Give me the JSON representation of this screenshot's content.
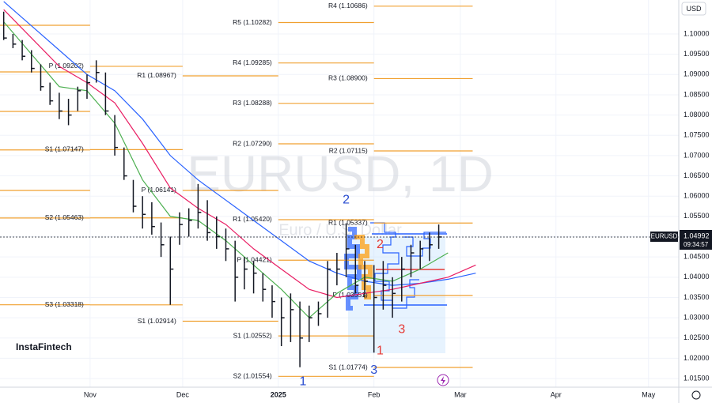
{
  "chart_data": {
    "type": "ohlc",
    "watermark": "EURUSD, 1D",
    "watermark_subtitle": "Euro / U.S. Dollar",
    "brand": "InstaFintech",
    "currency": "USD",
    "symbol": "EURUSD",
    "last_price": 1.04992,
    "countdown": "09:34:57",
    "color": "#131722",
    "x": [
      3,
      6,
      9,
      12,
      15,
      18,
      21,
      24,
      27,
      30,
      33,
      36,
      39,
      42,
      45,
      48,
      51,
      54,
      57,
      60,
      63,
      66,
      69,
      72,
      75,
      78,
      81,
      84,
      87,
      90,
      93,
      96,
      99,
      102,
      105,
      108,
      111,
      114,
      117,
      120,
      123,
      126,
      129,
      132,
      135,
      138,
      141,
      144
    ],
    "high": [
      1.1055,
      1.1,
      1.0985,
      1.096,
      1.0925,
      1.088,
      1.0855,
      1.084,
      1.087,
      1.09,
      1.0935,
      1.0905,
      1.08,
      1.072,
      1.064,
      1.06,
      1.0585,
      1.0535,
      1.05,
      1.056,
      1.057,
      1.063,
      1.059,
      1.055,
      1.052,
      1.049,
      1.045,
      1.044,
      1.041,
      1.038,
      1.035,
      1.036,
      1.034,
      1.033,
      1.034,
      1.044,
      1.046,
      1.0533,
      1.048,
      1.044,
      1.043,
      1.044,
      1.04,
      1.045,
      1.048,
      1.049,
      1.051,
      1.053
    ],
    "low": [
      1.0985,
      1.0965,
      1.0935,
      1.0905,
      1.086,
      1.0825,
      1.079,
      1.0775,
      1.081,
      1.084,
      1.088,
      1.08,
      1.07,
      1.064,
      1.056,
      1.052,
      1.0505,
      1.045,
      1.0332,
      1.048,
      1.05,
      1.052,
      1.049,
      1.047,
      1.044,
      1.034,
      1.037,
      1.036,
      1.034,
      1.03,
      1.023,
      1.024,
      1.0178,
      1.024,
      1.028,
      1.03,
      1.038,
      1.04,
      1.036,
      1.035,
      1.0214,
      1.032,
      1.03,
      1.034,
      1.04,
      1.042,
      1.044,
      1.047
    ],
    "close": [
      1.099,
      1.0975,
      1.0945,
      1.0915,
      1.087,
      1.0835,
      1.081,
      1.08,
      1.086,
      1.088,
      1.0905,
      1.081,
      1.072,
      1.065,
      1.0575,
      1.0555,
      1.0525,
      1.048,
      1.042,
      1.053,
      1.054,
      1.056,
      1.051,
      1.05,
      1.047,
      1.04,
      1.042,
      1.041,
      1.037,
      1.034,
      1.03,
      1.032,
      1.025,
      1.03,
      1.031,
      1.042,
      1.042,
      1.047,
      1.038,
      1.039,
      1.035,
      1.038,
      1.036,
      1.042,
      1.046,
      1.047,
      1.048,
      1.04992
    ],
    "moving_averages": [
      {
        "color": "#2962ff",
        "x": [
          3,
          12,
          21,
          30,
          39,
          48,
          57,
          66,
          75,
          84,
          93,
          102,
          111,
          120,
          129,
          138,
          147,
          156
        ],
        "values": [
          1.108,
          1.102,
          1.096,
          1.09,
          1.086,
          1.079,
          1.07,
          1.064,
          1.059,
          1.054,
          1.049,
          1.044,
          1.041,
          1.039,
          1.038,
          1.0385,
          1.0395,
          1.041
        ]
      },
      {
        "color": "#e91e63",
        "x": [
          3,
          12,
          21,
          30,
          39,
          48,
          57,
          66,
          75,
          84,
          93,
          102,
          111,
          120,
          129,
          138,
          147,
          156
        ],
        "values": [
          1.106,
          1.099,
          1.092,
          1.088,
          1.083,
          1.073,
          1.062,
          1.057,
          1.053,
          1.047,
          1.042,
          1.037,
          1.035,
          1.036,
          1.037,
          1.0385,
          1.04,
          1.043
        ]
      },
      {
        "color": "#4caf50",
        "x": [
          3,
          12,
          21,
          30,
          39,
          48,
          57,
          66,
          75,
          84,
          93,
          102,
          111,
          120,
          129,
          138,
          147,
          156
        ],
        "values": [
          1.103,
          1.095,
          1.087,
          1.086,
          1.078,
          1.064,
          1.055,
          1.054,
          1.049,
          1.043,
          1.037,
          1.03,
          1.036,
          1.04,
          1.039,
          1.042,
          1.046,
          null
        ]
      }
    ],
    "pivot_color": "#f0a030",
    "pivot_levels": [
      {
        "value": 1.10214,
        "from": 1.8,
        "to": 31
      },
      {
        "value": 1.09064,
        "from": 1.8,
        "to": 31
      },
      {
        "value": 1.0809,
        "from": 1.8,
        "to": 31
      },
      {
        "value": 1.0714,
        "from": 1.8,
        "to": 31
      },
      {
        "value": 1.0614,
        "from": 1.8,
        "to": 31
      },
      {
        "value": 1.0546,
        "from": 1.8,
        "to": 31
      },
      {
        "value": 1.0332,
        "from": 1.8,
        "to": 31
      },
      {
        "label": "P (1.09202)",
        "value": 1.09202,
        "from": 31,
        "to": 61
      },
      {
        "label": "S1 (1.07147)",
        "value": 1.07147,
        "from": 31,
        "to": 61
      },
      {
        "label": "S2 (1.05463)",
        "value": 1.05463,
        "from": 31,
        "to": 61
      },
      {
        "label": "S3 (1.03318)",
        "value": 1.03318,
        "from": 31,
        "to": 61
      },
      {
        "label": "R1 (1.08967)",
        "value": 1.08967,
        "from": 61,
        "to": 92
      },
      {
        "label": "P (1.06141)",
        "value": 1.06141,
        "from": 61,
        "to": 92
      },
      {
        "label": "S1 (1.02914)",
        "value": 1.02914,
        "from": 61,
        "to": 92
      },
      {
        "label": "R5 (1.10282)",
        "value": 1.10282,
        "from": 92,
        "to": 123
      },
      {
        "label": "R4 (1.09285)",
        "value": 1.09285,
        "from": 92,
        "to": 123
      },
      {
        "label": "R3 (1.08288)",
        "value": 1.08288,
        "from": 92,
        "to": 123
      },
      {
        "label": "R2 (1.07290)",
        "value": 1.0729,
        "from": 92,
        "to": 123
      },
      {
        "label": "R1 (1.05420)",
        "value": 1.0542,
        "from": 92,
        "to": 123
      },
      {
        "label": "P (1.04421)",
        "value": 1.04421,
        "from": 92,
        "to": 123
      },
      {
        "label": "S1 (1.02552)",
        "value": 1.02552,
        "from": 92,
        "to": 123
      },
      {
        "label": "S2 (1.01554)",
        "value": 1.01554,
        "from": 92,
        "to": 123
      },
      {
        "label": "R4 (1.10686)",
        "value": 1.10686,
        "from": 123,
        "to": 155
      },
      {
        "label": "R3 (1.08900)",
        "value": 1.089,
        "from": 123,
        "to": 155
      },
      {
        "label": "R2 (1.07115)",
        "value": 1.07115,
        "from": 123,
        "to": 155
      },
      {
        "label": "R1 (1.05337)",
        "value": 1.05337,
        "from": 123,
        "to": 155
      },
      {
        "label": "P (1.03551)",
        "value": 1.03551,
        "from": 123,
        "to": 155
      },
      {
        "label": "S1 (1.01774)",
        "value": 1.01774,
        "from": 123,
        "to": 155
      }
    ],
    "wave_labels": [
      {
        "text": "2",
        "color": "#2a4dd0",
        "x": 114,
        "y": 1.059
      },
      {
        "text": "1",
        "color": "#2a4dd0",
        "x": 100,
        "y": 1.0142
      },
      {
        "text": "3",
        "color": "#2a4dd0",
        "x": 123,
        "y": 1.017
      },
      {
        "text": "2",
        "color": "#e53935",
        "x": 125,
        "y": 1.048
      },
      {
        "text": "3",
        "color": "#e53935",
        "x": 132,
        "y": 1.027
      },
      {
        "text": "1",
        "color": "#e53935",
        "x": 125,
        "y": 1.0218
      }
    ],
    "xlim": [
      1.8,
      221.8
    ],
    "xticks": [
      {
        "value": 31,
        "label": "Nov"
      },
      {
        "value": 61,
        "label": "Dec"
      },
      {
        "value": 92,
        "label": "2025"
      },
      {
        "value": 123,
        "label": "Feb"
      },
      {
        "value": 151,
        "label": "Mar"
      },
      {
        "value": 182,
        "label": "Apr"
      },
      {
        "value": 212,
        "label": "May"
      }
    ],
    "ylim": [
      1.01287,
      1.10838
    ],
    "yticks": [
      {
        "value": 1.1,
        "label": "1.10000"
      },
      {
        "value": 1.095,
        "label": "1.09500"
      },
      {
        "value": 1.09,
        "label": "1.09000"
      },
      {
        "value": 1.085,
        "label": "1.08500"
      },
      {
        "value": 1.08,
        "label": "1.08000"
      },
      {
        "value": 1.075,
        "label": "1.07500"
      },
      {
        "value": 1.07,
        "label": "1.07000"
      },
      {
        "value": 1.065,
        "label": "1.06500"
      },
      {
        "value": 1.06,
        "label": "1.06000"
      },
      {
        "value": 1.055,
        "label": "1.05500"
      },
      {
        "value": 1.05,
        "label": "1.05000"
      },
      {
        "value": 1.045,
        "label": "1.04500"
      },
      {
        "value": 1.04,
        "label": "1.04000"
      },
      {
        "value": 1.035,
        "label": "1.03500"
      },
      {
        "value": 1.03,
        "label": "1.03000"
      },
      {
        "value": 1.025,
        "label": "1.02500"
      },
      {
        "value": 1.02,
        "label": "1.02000"
      },
      {
        "value": 1.015,
        "label": "1.01500"
      }
    ],
    "grid": true
  }
}
